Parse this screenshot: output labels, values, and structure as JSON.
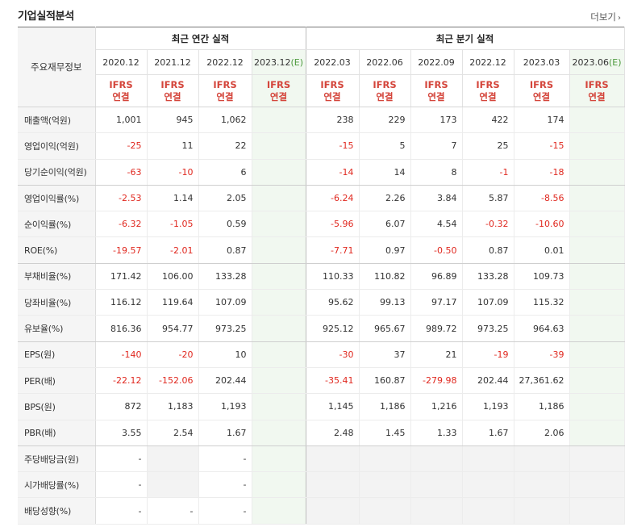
{
  "header": {
    "title": "기업실적분석",
    "more_label": "더보기",
    "more_icon": "chevron-right-icon"
  },
  "table": {
    "label_header": "주요재무정보",
    "groups": {
      "annual": "최근 연간 실적",
      "quarterly": "최근 분기 실적"
    },
    "periods": [
      "2020.12",
      "2021.12",
      "2022.12",
      "2023.12",
      "2022.03",
      "2022.06",
      "2022.09",
      "2022.12",
      "2023.03",
      "2023.06"
    ],
    "estimate_mark": "(E)",
    "ifrs": {
      "line1": "IFRS",
      "line2": "연결"
    },
    "rows": [
      {
        "label": "매출액(억원)",
        "values": [
          "1,001",
          "945",
          "1,062",
          "",
          "238",
          "229",
          "173",
          "422",
          "174",
          ""
        ]
      },
      {
        "label": "영업이익(억원)",
        "values": [
          "-25",
          "11",
          "22",
          "",
          "-15",
          "5",
          "7",
          "25",
          "-15",
          ""
        ]
      },
      {
        "label": "당기순이익(억원)",
        "values": [
          "-63",
          "-10",
          "6",
          "",
          "-14",
          "14",
          "8",
          "-1",
          "-18",
          ""
        ]
      },
      {
        "label": "영업이익률(%)",
        "values": [
          "-2.53",
          "1.14",
          "2.05",
          "",
          "-6.24",
          "2.26",
          "3.84",
          "5.87",
          "-8.56",
          ""
        ]
      },
      {
        "label": "순이익률(%)",
        "values": [
          "-6.32",
          "-1.05",
          "0.59",
          "",
          "-5.96",
          "6.07",
          "4.54",
          "-0.32",
          "-10.60",
          ""
        ]
      },
      {
        "label": "ROE(%)",
        "values": [
          "-19.57",
          "-2.01",
          "0.87",
          "",
          "-7.71",
          "0.97",
          "-0.50",
          "0.87",
          "0.01",
          ""
        ]
      },
      {
        "label": "부채비율(%)",
        "values": [
          "171.42",
          "106.00",
          "133.28",
          "",
          "110.33",
          "110.82",
          "96.89",
          "133.28",
          "109.73",
          ""
        ]
      },
      {
        "label": "당좌비율(%)",
        "values": [
          "116.12",
          "119.64",
          "107.09",
          "",
          "95.62",
          "99.13",
          "97.17",
          "107.09",
          "115.32",
          ""
        ]
      },
      {
        "label": "유보율(%)",
        "values": [
          "816.36",
          "954.77",
          "973.25",
          "",
          "925.12",
          "965.67",
          "989.72",
          "973.25",
          "964.63",
          ""
        ]
      },
      {
        "label": "EPS(원)",
        "values": [
          "-140",
          "-20",
          "10",
          "",
          "-30",
          "37",
          "21",
          "-19",
          "-39",
          ""
        ]
      },
      {
        "label": "PER(배)",
        "values": [
          "-22.12",
          "-152.06",
          "202.44",
          "",
          "-35.41",
          "160.87",
          "-279.98",
          "202.44",
          "27,361.62",
          ""
        ]
      },
      {
        "label": "BPS(원)",
        "values": [
          "872",
          "1,183",
          "1,193",
          "",
          "1,145",
          "1,186",
          "1,216",
          "1,193",
          "1,186",
          ""
        ]
      },
      {
        "label": "PBR(배)",
        "values": [
          "3.55",
          "2.54",
          "1.67",
          "",
          "2.48",
          "1.45",
          "1.33",
          "1.67",
          "2.06",
          ""
        ]
      },
      {
        "label": "주당배당금(원)",
        "values": [
          "-",
          "",
          "-",
          "",
          "",
          "",
          "",
          "",
          "",
          ""
        ]
      },
      {
        "label": "시가배당률(%)",
        "values": [
          "-",
          "",
          "-",
          "",
          "",
          "",
          "",
          "",
          "",
          ""
        ]
      },
      {
        "label": "배당성향(%)",
        "values": [
          "-",
          "-",
          "-",
          "",
          "",
          "",
          "",
          "",
          "",
          ""
        ]
      }
    ]
  },
  "colors": {
    "negative": "#e0281f",
    "ifrs": "#d4453b",
    "estimate_bg": "#f1f8f0",
    "estimate_mark": "#4c9a3d"
  }
}
